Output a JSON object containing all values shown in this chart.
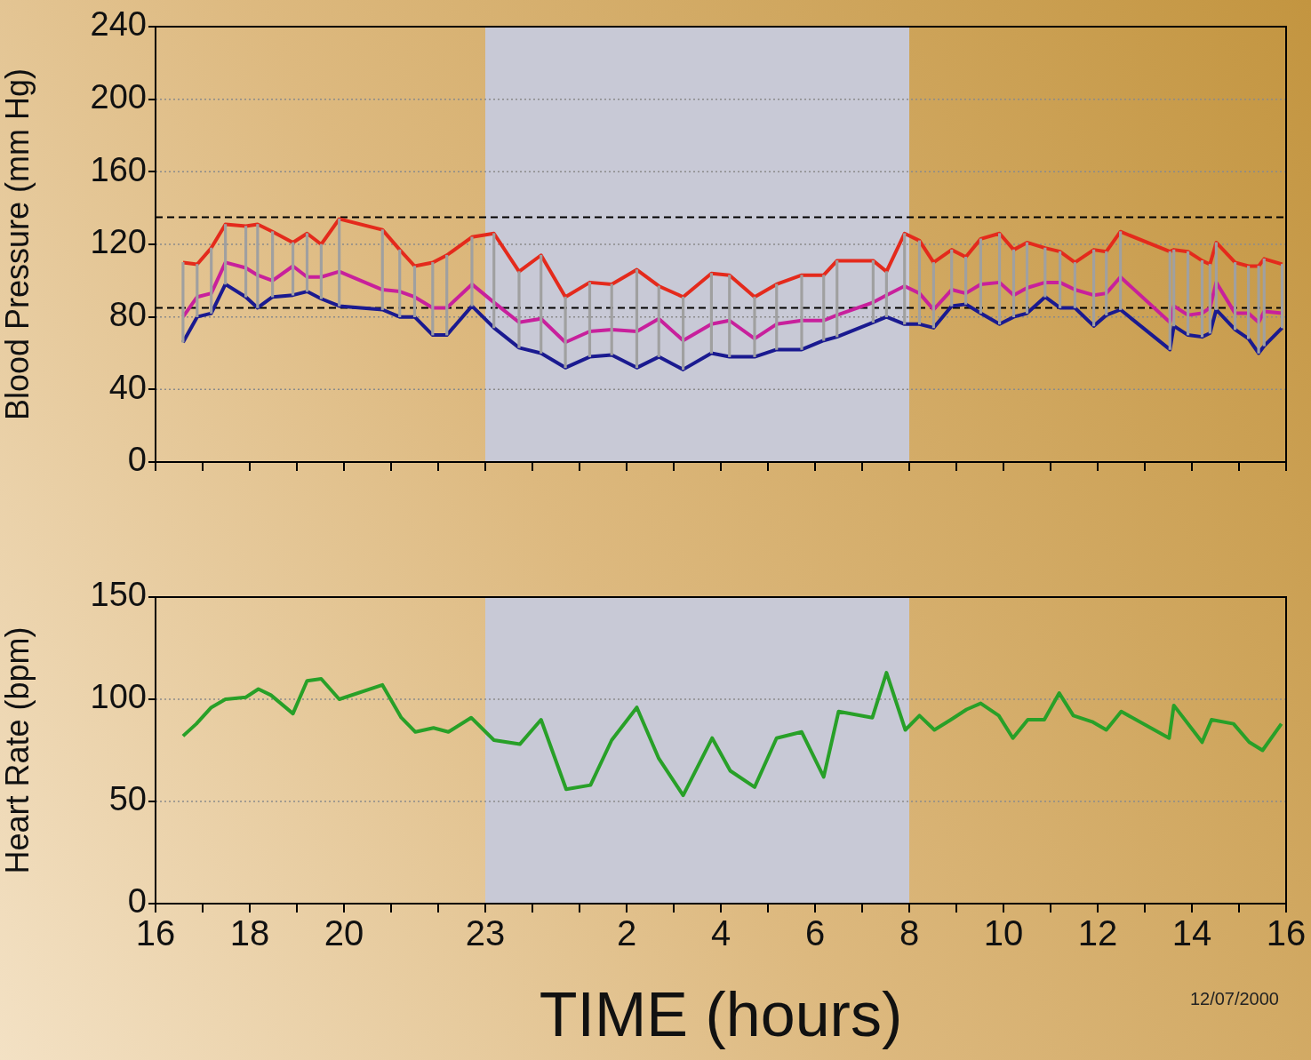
{
  "chart_data": [
    {
      "type": "line",
      "ylabel": "Blood Pressure (mm Hg)",
      "x": [
        "2000-07-12T16:35",
        "2000-07-12T16:53",
        "2000-07-12T17:11",
        "2000-07-12T17:29",
        "2000-07-12T17:55",
        "2000-07-12T18:10",
        "2000-07-12T18:29",
        "2000-07-12T18:55",
        "2000-07-12T19:13",
        "2000-07-12T19:31",
        "2000-07-12T19:54",
        "2000-07-12T20:49",
        "2000-07-12T21:11",
        "2000-07-12T21:30",
        "2000-07-12T21:53",
        "2000-07-12T22:11",
        "2000-07-12T22:43",
        "2000-07-12T23:11",
        "2000-07-12T23:43",
        "2000-07-13T00:11",
        "2000-07-13T00:42",
        "2000-07-13T01:13",
        "2000-07-13T01:41",
        "2000-07-13T02:13",
        "2000-07-13T02:41",
        "2000-07-13T03:12",
        "2000-07-13T03:48",
        "2000-07-13T04:11",
        "2000-07-13T04:43",
        "2000-07-13T05:11",
        "2000-07-13T05:43",
        "2000-07-13T06:11",
        "2000-07-13T06:28",
        "2000-07-13T07:14",
        "2000-07-13T07:31",
        "2000-07-13T07:54",
        "2000-07-13T08:13",
        "2000-07-13T08:31",
        "2000-07-13T08:54",
        "2000-07-13T09:12",
        "2000-07-13T09:31",
        "2000-07-13T09:55",
        "2000-07-13T10:13",
        "2000-07-13T10:30",
        "2000-07-13T10:53",
        "2000-07-13T11:12",
        "2000-07-13T11:31",
        "2000-07-13T11:55",
        "2000-07-13T12:11",
        "2000-07-13T12:29",
        "2000-07-13T13:32",
        "2000-07-13T13:37",
        "2000-07-13T13:55",
        "2000-07-13T14:13",
        "2000-07-13T14:23",
        "2000-07-13T14:31",
        "2000-07-13T14:55",
        "2000-07-13T15:12",
        "2000-07-13T15:25",
        "2000-07-13T15:32",
        "2000-07-13T15:55"
      ],
      "series": [
        {
          "type": "bar",
          "color": "#a0a0a0",
          "base": [
            66,
            80,
            82,
            98,
            91,
            85,
            91,
            92,
            94,
            90,
            86,
            84,
            80,
            80,
            70,
            70,
            86,
            74,
            63,
            60,
            52,
            58,
            59,
            52,
            58,
            51,
            60,
            58,
            58,
            62,
            62,
            67,
            69,
            77,
            80,
            76,
            76,
            74,
            86,
            87,
            82,
            76,
            80,
            82,
            91,
            85,
            85,
            75,
            81,
            84,
            62,
            75,
            70,
            69,
            71,
            84,
            73,
            68,
            60,
            64,
            74
          ],
          "values": [
            44,
            29,
            36,
            33,
            39,
            46,
            36,
            29,
            32,
            30,
            48,
            44,
            37,
            28,
            40,
            44,
            38,
            52,
            42,
            54,
            39,
            41,
            39,
            54,
            39,
            40,
            44,
            45,
            33,
            36,
            41,
            36,
            42,
            34,
            25,
            50,
            46,
            36,
            31,
            26,
            41,
            50,
            37,
            39,
            27,
            31,
            25,
            42,
            35,
            43,
            54,
            42,
            46,
            42,
            38,
            37,
            37,
            40,
            48,
            48,
            35
          ]
        },
        {
          "color": "#e42a1c",
          "values": [
            110,
            109,
            118,
            131,
            130,
            131,
            127,
            121,
            126,
            120,
            134,
            128,
            117,
            108,
            110,
            114,
            124,
            126,
            105,
            114,
            91,
            99,
            98,
            106,
            97,
            91,
            104,
            103,
            91,
            98,
            103,
            103,
            111,
            111,
            105,
            126,
            122,
            110,
            117,
            113,
            123,
            126,
            117,
            121,
            118,
            116,
            110,
            117,
            116,
            127,
            116,
            117,
            116,
            111,
            109,
            121,
            110,
            108,
            108,
            112,
            109
          ]
        },
        {
          "color": "#c8209c",
          "values": [
            80,
            91,
            93,
            110,
            107,
            103,
            100,
            108,
            102,
            102,
            105,
            95,
            94,
            91,
            85,
            85,
            98,
            88,
            77,
            79,
            66,
            72,
            73,
            72,
            79,
            67,
            76,
            78,
            68,
            76,
            78,
            78,
            81,
            88,
            92,
            97,
            93,
            84,
            95,
            93,
            98,
            99,
            92,
            96,
            99,
            99,
            95,
            92,
            93,
            102,
            77,
            86,
            81,
            82,
            85,
            99,
            82,
            82,
            77,
            83,
            82
          ]
        },
        {
          "color": "#1a1a90",
          "values": [
            66,
            80,
            82,
            98,
            91,
            85,
            91,
            92,
            94,
            90,
            86,
            84,
            80,
            80,
            70,
            70,
            86,
            74,
            63,
            60,
            52,
            58,
            59,
            52,
            58,
            51,
            60,
            58,
            58,
            62,
            62,
            67,
            69,
            77,
            80,
            76,
            76,
            74,
            86,
            87,
            82,
            76,
            80,
            82,
            91,
            85,
            85,
            75,
            81,
            84,
            62,
            75,
            70,
            69,
            71,
            84,
            73,
            68,
            60,
            64,
            74
          ]
        }
      ],
      "xlim": [
        "2000-07-12T16:00",
        "2000-07-13T16:00"
      ],
      "xticks": [
        {
          "value": "2000-07-12T16:00",
          "label": null
        },
        {
          "value": "2000-07-12T17:00",
          "label": null
        },
        {
          "value": "2000-07-12T18:00",
          "label": null
        },
        {
          "value": "2000-07-12T19:00",
          "label": null
        },
        {
          "value": "2000-07-12T20:00",
          "label": null
        },
        {
          "value": "2000-07-12T21:00",
          "label": null
        },
        {
          "value": "2000-07-12T22:00",
          "label": null
        },
        {
          "value": "2000-07-12T23:00",
          "label": null
        },
        {
          "value": "2000-07-13T00:00",
          "label": null
        },
        {
          "value": "2000-07-13T01:00",
          "label": null
        },
        {
          "value": "2000-07-13T02:00",
          "label": null
        },
        {
          "value": "2000-07-13T03:00",
          "label": null
        },
        {
          "value": "2000-07-13T04:00",
          "label": null
        },
        {
          "value": "2000-07-13T05:00",
          "label": null
        },
        {
          "value": "2000-07-13T06:00",
          "label": null
        },
        {
          "value": "2000-07-13T07:00",
          "label": null
        },
        {
          "value": "2000-07-13T08:00",
          "label": null
        },
        {
          "value": "2000-07-13T09:00",
          "label": null
        },
        {
          "value": "2000-07-13T10:00",
          "label": null
        },
        {
          "value": "2000-07-13T11:00",
          "label": null
        },
        {
          "value": "2000-07-13T12:00",
          "label": null
        },
        {
          "value": "2000-07-13T13:00",
          "label": null
        },
        {
          "value": "2000-07-13T14:00",
          "label": null
        },
        {
          "value": "2000-07-13T15:00",
          "label": null
        },
        {
          "value": "2000-07-13T16:00",
          "label": null
        }
      ],
      "ylim": [
        0,
        240
      ],
      "yticks": [
        0,
        40,
        80,
        120,
        160,
        200,
        240
      ],
      "grid": "y",
      "tick_labels": "y",
      "ref_lines": [
        {
          "axis": "y",
          "value": 135,
          "color": "#000000",
          "line_style": "dashed"
        },
        {
          "axis": "y",
          "value": 85,
          "color": "#000000",
          "line_style": "dashed"
        }
      ],
      "bands": [
        {
          "axis": "x",
          "from": "2000-07-12T23:00",
          "to": "2000-07-13T08:00",
          "color": "#c8c9d6"
        }
      ]
    },
    {
      "type": "line",
      "ylabel": "Heart Rate (bpm)",
      "xlabel": "TIME (hours)",
      "x": [
        "2000-07-12T16:35",
        "2000-07-12T16:52",
        "2000-07-12T17:11",
        "2000-07-12T17:29",
        "2000-07-12T17:55",
        "2000-07-12T18:11",
        "2000-07-12T18:27",
        "2000-07-12T18:55",
        "2000-07-12T19:13",
        "2000-07-12T19:31",
        "2000-07-12T19:54",
        "2000-07-12T20:49",
        "2000-07-12T21:13",
        "2000-07-12T21:31",
        "2000-07-12T21:54",
        "2000-07-12T22:13",
        "2000-07-12T22:42",
        "2000-07-12T23:11",
        "2000-07-12T23:44",
        "2000-07-13T00:11",
        "2000-07-13T00:43",
        "2000-07-13T01:14",
        "2000-07-13T01:41",
        "2000-07-13T02:13",
        "2000-07-13T02:41",
        "2000-07-13T03:12",
        "2000-07-13T03:49",
        "2000-07-13T04:12",
        "2000-07-13T04:43",
        "2000-07-13T05:11",
        "2000-07-13T05:43",
        "2000-07-13T06:11",
        "2000-07-13T06:30",
        "2000-07-13T07:13",
        "2000-07-13T07:31",
        "2000-07-13T07:55",
        "2000-07-13T08:13",
        "2000-07-13T08:32",
        "2000-07-13T08:53",
        "2000-07-13T09:13",
        "2000-07-13T09:31",
        "2000-07-13T09:54",
        "2000-07-13T10:12",
        "2000-07-13T10:31",
        "2000-07-13T10:52",
        "2000-07-13T11:11",
        "2000-07-13T11:29",
        "2000-07-13T11:53",
        "2000-07-13T12:11",
        "2000-07-13T12:30",
        "2000-07-13T13:31",
        "2000-07-13T13:37",
        "2000-07-13T14:13",
        "2000-07-13T14:25",
        "2000-07-13T14:53",
        "2000-07-13T15:13",
        "2000-07-13T15:30",
        "2000-07-13T15:54"
      ],
      "series": [
        {
          "color": "#28a028",
          "values": [
            82,
            88,
            96,
            100,
            101,
            105,
            102,
            93,
            109,
            110,
            100,
            107,
            91,
            84,
            86,
            84,
            91,
            80,
            78,
            90,
            56,
            58,
            80,
            96,
            71,
            53,
            81,
            65,
            57,
            81,
            84,
            62,
            94,
            91,
            113,
            85,
            92,
            85,
            90,
            95,
            98,
            92,
            81,
            90,
            90,
            103,
            92,
            89,
            85,
            94,
            81,
            97,
            79,
            90,
            88,
            79,
            75,
            88
          ]
        }
      ],
      "xlim": [
        "2000-07-12T16:00",
        "2000-07-13T16:00"
      ],
      "xticks": [
        {
          "value": "2000-07-12T16:00",
          "label": "16"
        },
        {
          "value": "2000-07-12T17:00",
          "label": null
        },
        {
          "value": "2000-07-12T18:00",
          "label": "18"
        },
        {
          "value": "2000-07-12T19:00",
          "label": null
        },
        {
          "value": "2000-07-12T20:00",
          "label": "20"
        },
        {
          "value": "2000-07-12T21:00",
          "label": null
        },
        {
          "value": "2000-07-12T22:00",
          "label": null
        },
        {
          "value": "2000-07-12T23:00",
          "label": "23"
        },
        {
          "value": "2000-07-13T00:00",
          "label": null
        },
        {
          "value": "2000-07-13T01:00",
          "label": null
        },
        {
          "value": "2000-07-13T02:00",
          "label": "2"
        },
        {
          "value": "2000-07-13T03:00",
          "label": null
        },
        {
          "value": "2000-07-13T04:00",
          "label": "4"
        },
        {
          "value": "2000-07-13T05:00",
          "label": null
        },
        {
          "value": "2000-07-13T06:00",
          "label": "6"
        },
        {
          "value": "2000-07-13T07:00",
          "label": null
        },
        {
          "value": "2000-07-13T08:00",
          "label": "8"
        },
        {
          "value": "2000-07-13T09:00",
          "label": null
        },
        {
          "value": "2000-07-13T10:00",
          "label": "10"
        },
        {
          "value": "2000-07-13T11:00",
          "label": null
        },
        {
          "value": "2000-07-13T12:00",
          "label": "12"
        },
        {
          "value": "2000-07-13T13:00",
          "label": null
        },
        {
          "value": "2000-07-13T14:00",
          "label": "14"
        },
        {
          "value": "2000-07-13T15:00",
          "label": null
        },
        {
          "value": "2000-07-13T16:00",
          "label": "16"
        }
      ],
      "ylim": [
        0,
        150
      ],
      "yticks": [
        0,
        50,
        100,
        150
      ],
      "grid": "y",
      "bands": [
        {
          "axis": "x",
          "from": "2000-07-12T23:00",
          "to": "2000-07-13T08:00",
          "color": "#c8c9d6"
        }
      ],
      "annotations": [
        "12/07/2000"
      ]
    }
  ]
}
